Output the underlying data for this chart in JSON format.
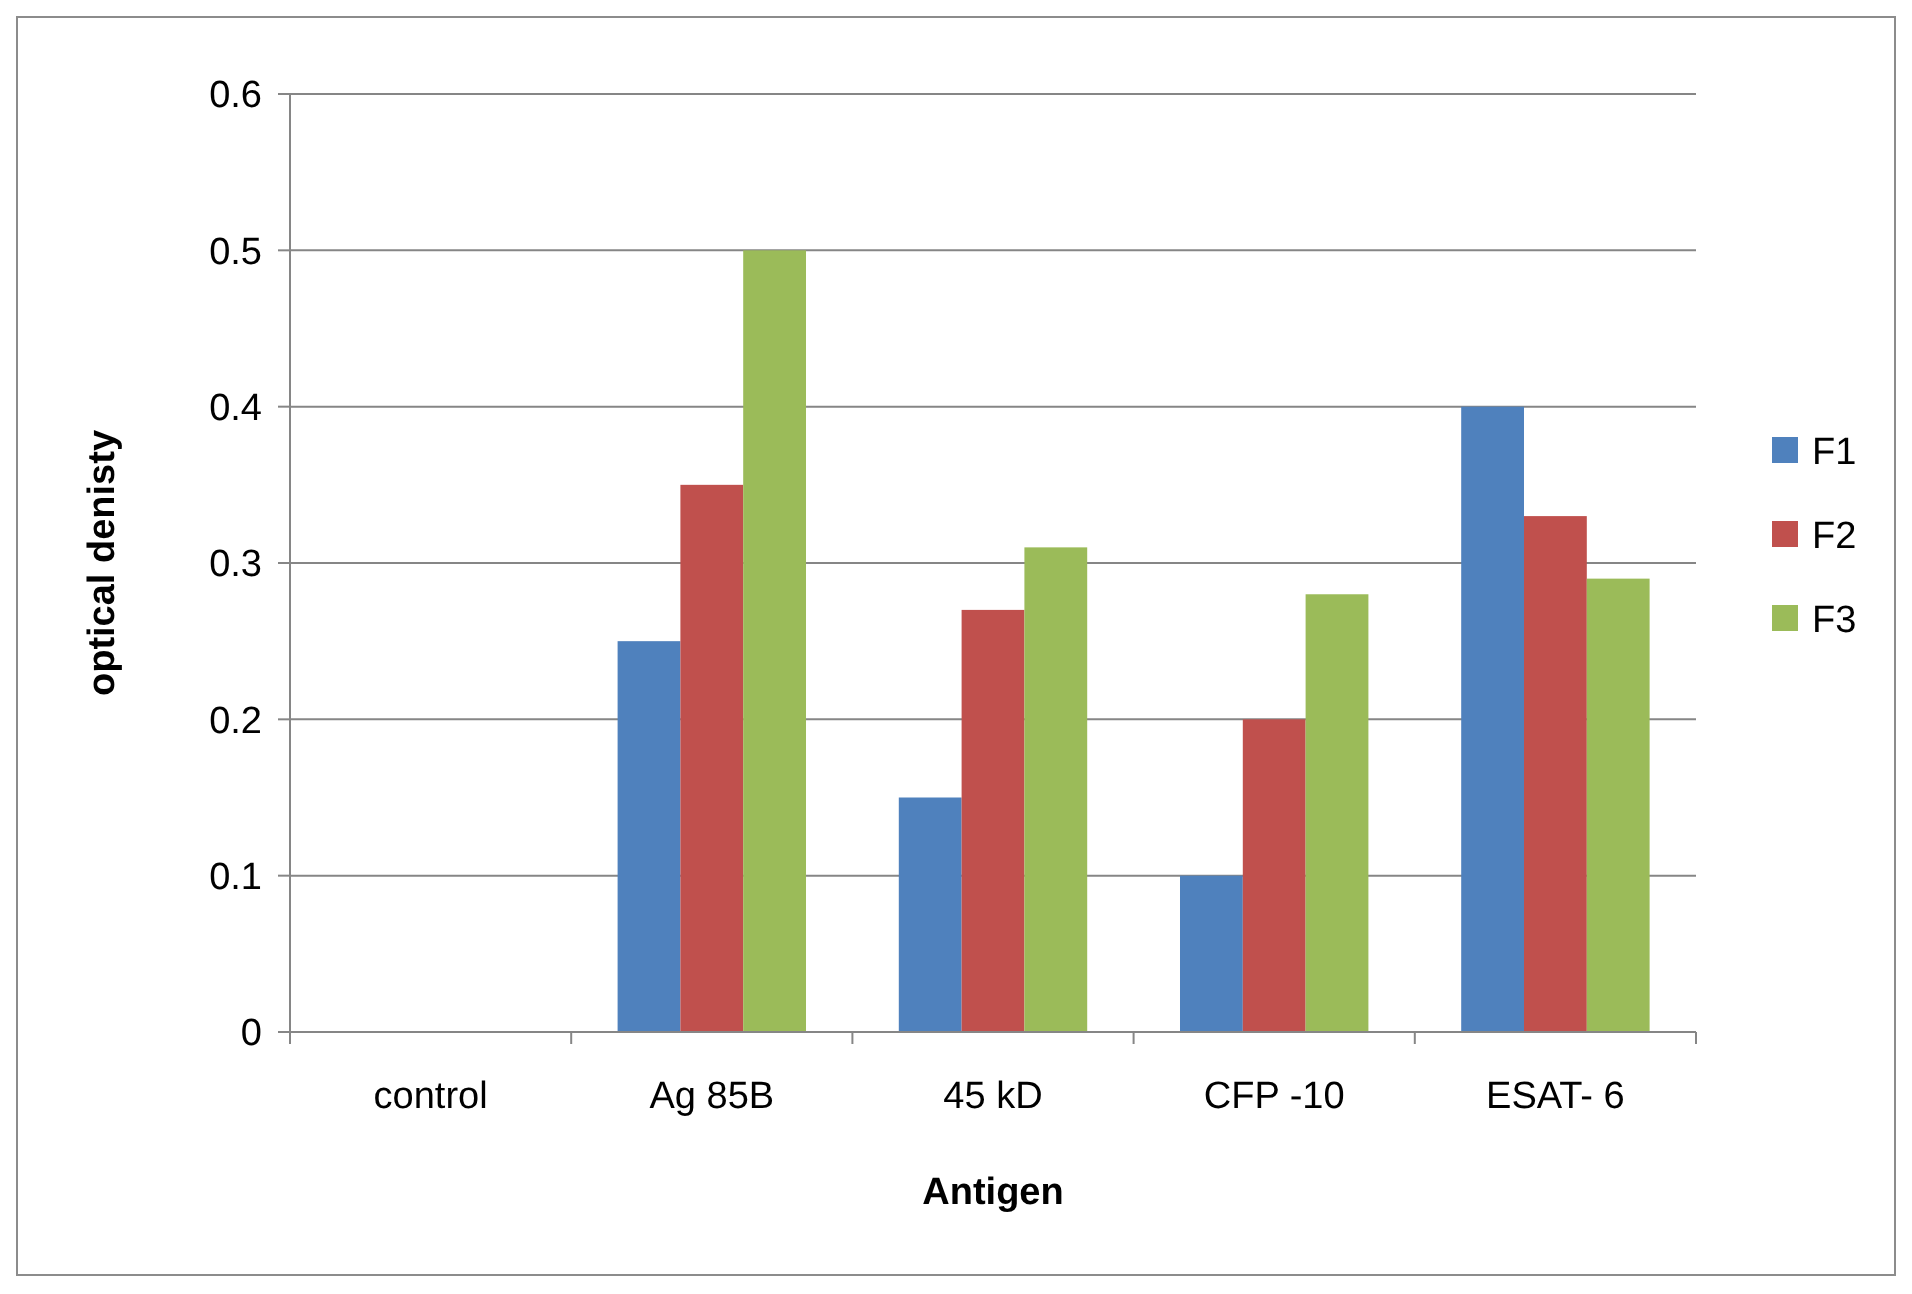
{
  "chart_data": {
    "type": "bar",
    "xlabel": "Antigen",
    "ylabel": "optical denisty",
    "categories": [
      "control",
      "Ag 85B",
      "45 kD",
      "CFP -10",
      "ESAT- 6"
    ],
    "series": [
      {
        "name": "F1",
        "color": "#4f81bd",
        "values": [
          0,
          0.25,
          0.15,
          0.1,
          0.4
        ]
      },
      {
        "name": "F2",
        "color": "#c0504d",
        "values": [
          0,
          0.35,
          0.27,
          0.2,
          0.33
        ]
      },
      {
        "name": "F3",
        "color": "#9bbb59",
        "values": [
          0,
          0.5,
          0.31,
          0.28,
          0.29
        ]
      }
    ],
    "ylim": [
      0,
      0.6
    ],
    "yticks": [
      0,
      0.1,
      0.2,
      0.3,
      0.4,
      0.5,
      0.6
    ],
    "grid": "y",
    "legend": "right"
  }
}
